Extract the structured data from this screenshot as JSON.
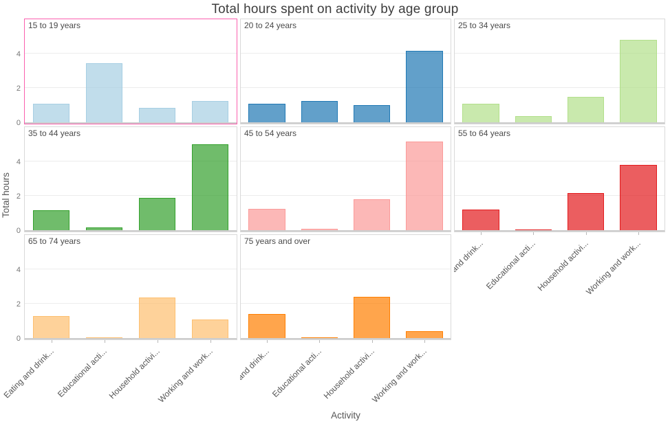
{
  "chart_data": {
    "type": "bar",
    "title": "Total hours spent on activity by age group",
    "xlabel": "Activity",
    "ylabel": "Total hours",
    "ylim": [
      0,
      6
    ],
    "yticks": [
      0,
      2,
      4
    ],
    "grid": "horizontal",
    "legend": "none",
    "layout": {
      "columns": 3,
      "rows": 3,
      "facet_count": 8
    },
    "categories": [
      "Eating and drink...",
      "Educational acti...",
      "Household activi...",
      "Working and work..."
    ],
    "selected_facet": "15 to 19 years",
    "selected_facet_border": "#fb5fae",
    "facets": [
      {
        "label": "15 to 19 years",
        "values": [
          1.1,
          3.45,
          0.85,
          1.25
        ],
        "fill": "rgba(166,206,227,0.7)",
        "border": "#a6cee3",
        "selected": true
      },
      {
        "label": "20 to 24 years",
        "values": [
          1.1,
          1.25,
          1.0,
          4.15
        ],
        "fill": "rgba(31,120,180,0.7)",
        "border": "#1f78b4",
        "selected": false
      },
      {
        "label": "25 to 34 years",
        "values": [
          1.1,
          0.35,
          1.5,
          4.8
        ],
        "fill": "rgba(178,223,138,0.7)",
        "border": "#b2df8a",
        "selected": false
      },
      {
        "label": "35 to 44 years",
        "values": [
          1.15,
          0.15,
          1.9,
          5.0
        ],
        "fill": "rgba(51,160,44,0.7)",
        "border": "#33a02c",
        "selected": false
      },
      {
        "label": "45 to 54 years",
        "values": [
          1.25,
          0.1,
          1.8,
          5.15
        ],
        "fill": "rgba(251,154,153,0.7)",
        "border": "#fb9a99",
        "selected": false
      },
      {
        "label": "55 to 64 years",
        "values": [
          1.2,
          0.05,
          2.15,
          3.8
        ],
        "fill": "rgba(227,26,28,0.7)",
        "border": "#e31a1c",
        "selected": false
      },
      {
        "label": "65 to 74 years",
        "values": [
          1.3,
          0.05,
          2.35,
          1.1
        ],
        "fill": "rgba(253,191,111,0.7)",
        "border": "#fdbf6f",
        "selected": false
      },
      {
        "label": "75 years and over",
        "values": [
          1.4,
          0.01,
          2.4,
          0.4
        ],
        "fill": "rgba(255,127,0,0.7)",
        "border": "#ff7f00",
        "selected": false
      }
    ]
  }
}
